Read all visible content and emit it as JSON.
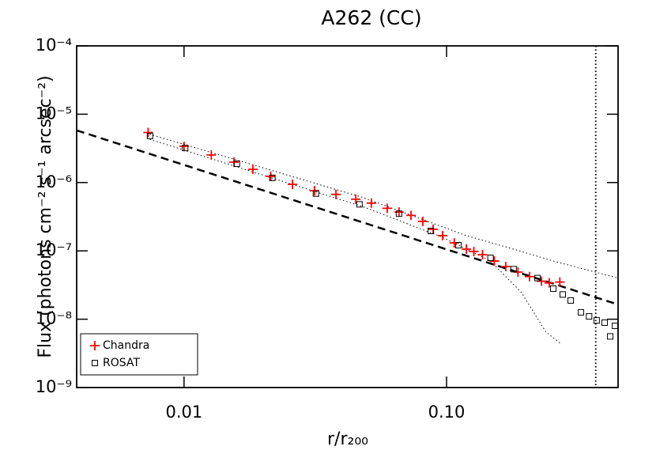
{
  "chart_data": {
    "type": "scatter",
    "title": "A262 (CC)",
    "x_label": "r/r₂₀₀",
    "y_label": "Flux (photons cm⁻² s⁻¹ arcsec⁻²)",
    "xscale": "log",
    "yscale": "log",
    "xlim": [
      0.0039,
      0.45
    ],
    "ylim": [
      1e-09,
      0.0001
    ],
    "xticks": [
      0.01,
      {
        "value": 0.1,
        "label": "0.10"
      }
    ],
    "yticks": [
      {
        "value": 1e-09,
        "label": "10⁻⁹"
      },
      {
        "value": 1e-08,
        "label": "10⁻⁸"
      },
      {
        "value": 1e-07,
        "label": "10⁻⁷"
      },
      {
        "value": 1e-06,
        "label": "10⁻⁶"
      },
      {
        "value": 1e-05,
        "label": "10⁻⁵"
      },
      {
        "value": 0.0001,
        "label": "10⁻⁴"
      }
    ],
    "legend": "lower left",
    "series": [
      {
        "name": "Chandra",
        "color": "#ff0000",
        "marker": "plus",
        "x": [
          0.0073,
          0.01,
          0.0127,
          0.0155,
          0.0183,
          0.0214,
          0.0259,
          0.0314,
          0.0379,
          0.0451,
          0.0517,
          0.0594,
          0.0659,
          0.0732,
          0.0812,
          0.0889,
          0.0966,
          0.107,
          0.119,
          0.127,
          0.137,
          0.152,
          0.168,
          0.187,
          0.207,
          0.23,
          0.246,
          0.27
        ],
        "values": [
          5.4e-06,
          3.39e-06,
          2.53e-06,
          1.99e-06,
          1.56e-06,
          1.23e-06,
          9.4e-07,
          7.6e-07,
          6.7e-07,
          5.7e-07,
          5e-07,
          4.2e-07,
          3.7e-07,
          3.3e-07,
          2.7e-07,
          2.07e-07,
          1.67e-07,
          1.31e-07,
          1.06e-07,
          9.8e-08,
          8.8e-08,
          7.1e-08,
          5.9e-08,
          4.9e-08,
          4.2e-08,
          3.6e-08,
          3.4e-08,
          3.5e-08
        ]
      },
      {
        "name": "ROSAT",
        "color": "#000000",
        "marker": "square",
        "x": [
          0.00742,
          0.0101,
          0.0159,
          0.0217,
          0.0318,
          0.0466,
          0.0659,
          0.0871,
          0.111,
          0.147,
          0.18,
          0.222,
          0.255,
          0.277,
          0.297,
          0.325,
          0.349,
          0.373,
          0.4,
          0.42,
          0.438
        ],
        "values": [
          4.8e-06,
          3.2e-06,
          1.88e-06,
          1.17e-06,
          6.9e-07,
          4.8e-07,
          3.5e-07,
          1.96e-07,
          1.21e-07,
          7.9e-08,
          5.4e-08,
          4e-08,
          2.8e-08,
          2.3e-08,
          1.88e-08,
          1.26e-08,
          1.1e-08,
          9.6e-09,
          8.9e-09,
          5.6e-09,
          8e-09
        ]
      }
    ],
    "lines": [
      {
        "style": "dashed",
        "color": "#000000",
        "x": [
          0.0039,
          0.45
        ],
        "y": [
          5.8e-06,
          1.64e-08
        ]
      },
      {
        "style": "dotted",
        "color": "#000000",
        "x": [
          0.0074,
          0.0483,
          0.119,
          0.18,
          0.255,
          0.45
        ],
        "y": [
          5.1e-06,
          6e-07,
          1.67e-07,
          1.06e-07,
          7.1e-08,
          4e-08
        ]
      },
      {
        "style": "dotted",
        "color": "#000000",
        "x": [
          0.0074,
          0.0483,
          0.0966,
          0.147,
          0.193,
          0.239,
          0.274
        ],
        "y": [
          4.3e-06,
          4.4e-07,
          1.58e-07,
          7.1e-08,
          2.45e-08,
          6.5e-09,
          4.3e-09
        ]
      }
    ],
    "vlines": [
      {
        "x": 0.37,
        "style": "dotted",
        "color": "#000000"
      }
    ]
  }
}
